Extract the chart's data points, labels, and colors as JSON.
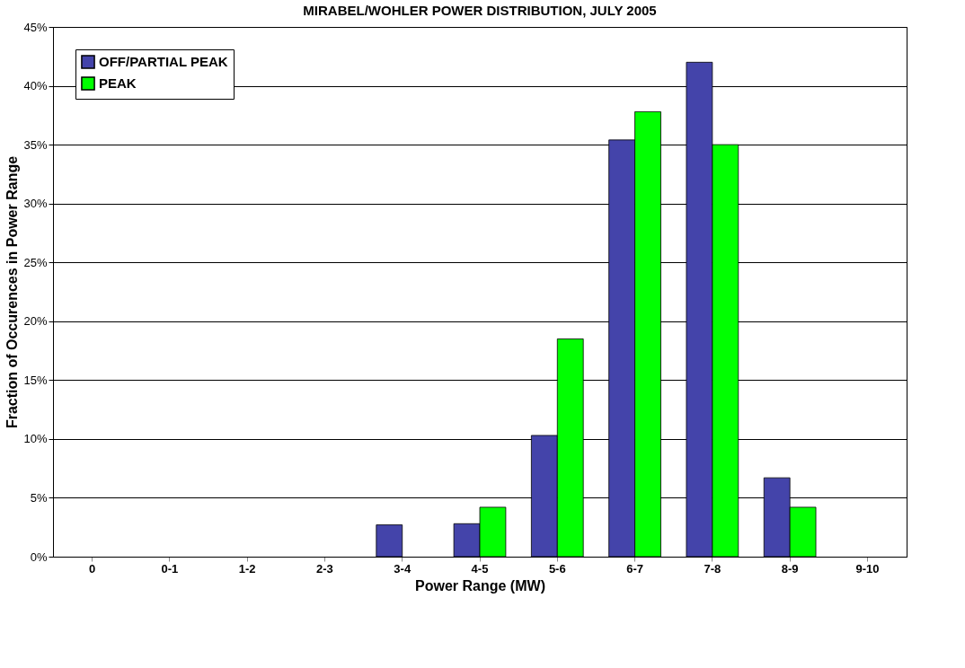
{
  "chart_data": {
    "type": "bar",
    "title": "MIRABEL/WOHLER POWER DISTRIBUTION, JULY 2005",
    "xlabel": "Power Range (MW)",
    "ylabel": "Fraction of Occurences in Power Range",
    "categories": [
      "0",
      "0-1",
      "1-2",
      "2-3",
      "3-4",
      "4-5",
      "5-6",
      "6-7",
      "7-8",
      "8-9",
      "9-10"
    ],
    "series": [
      {
        "name": "OFF/PARTIAL PEAK",
        "color": "#4444aa",
        "values": [
          0,
          0,
          0,
          0,
          2.7,
          2.8,
          10.3,
          35.4,
          42.0,
          6.7,
          0
        ]
      },
      {
        "name": "PEAK",
        "color": "#00ff00",
        "values": [
          0,
          0,
          0,
          0,
          0,
          4.2,
          18.5,
          37.8,
          35.0,
          4.2,
          0
        ]
      }
    ],
    "ylim": [
      0,
      45
    ],
    "yticks": [
      {
        "value": 0,
        "label": "0%"
      },
      {
        "value": 5,
        "label": "5%"
      },
      {
        "value": 10,
        "label": "10%"
      },
      {
        "value": 15,
        "label": "15%"
      },
      {
        "value": 20,
        "label": "20%"
      },
      {
        "value": 25,
        "label": "25%"
      },
      {
        "value": 30,
        "label": "30%"
      },
      {
        "value": 35,
        "label": "35%"
      },
      {
        "value": 40,
        "label": "40%"
      },
      {
        "value": 45,
        "label": "45%"
      }
    ],
    "grid": "y",
    "legend": "top left"
  }
}
